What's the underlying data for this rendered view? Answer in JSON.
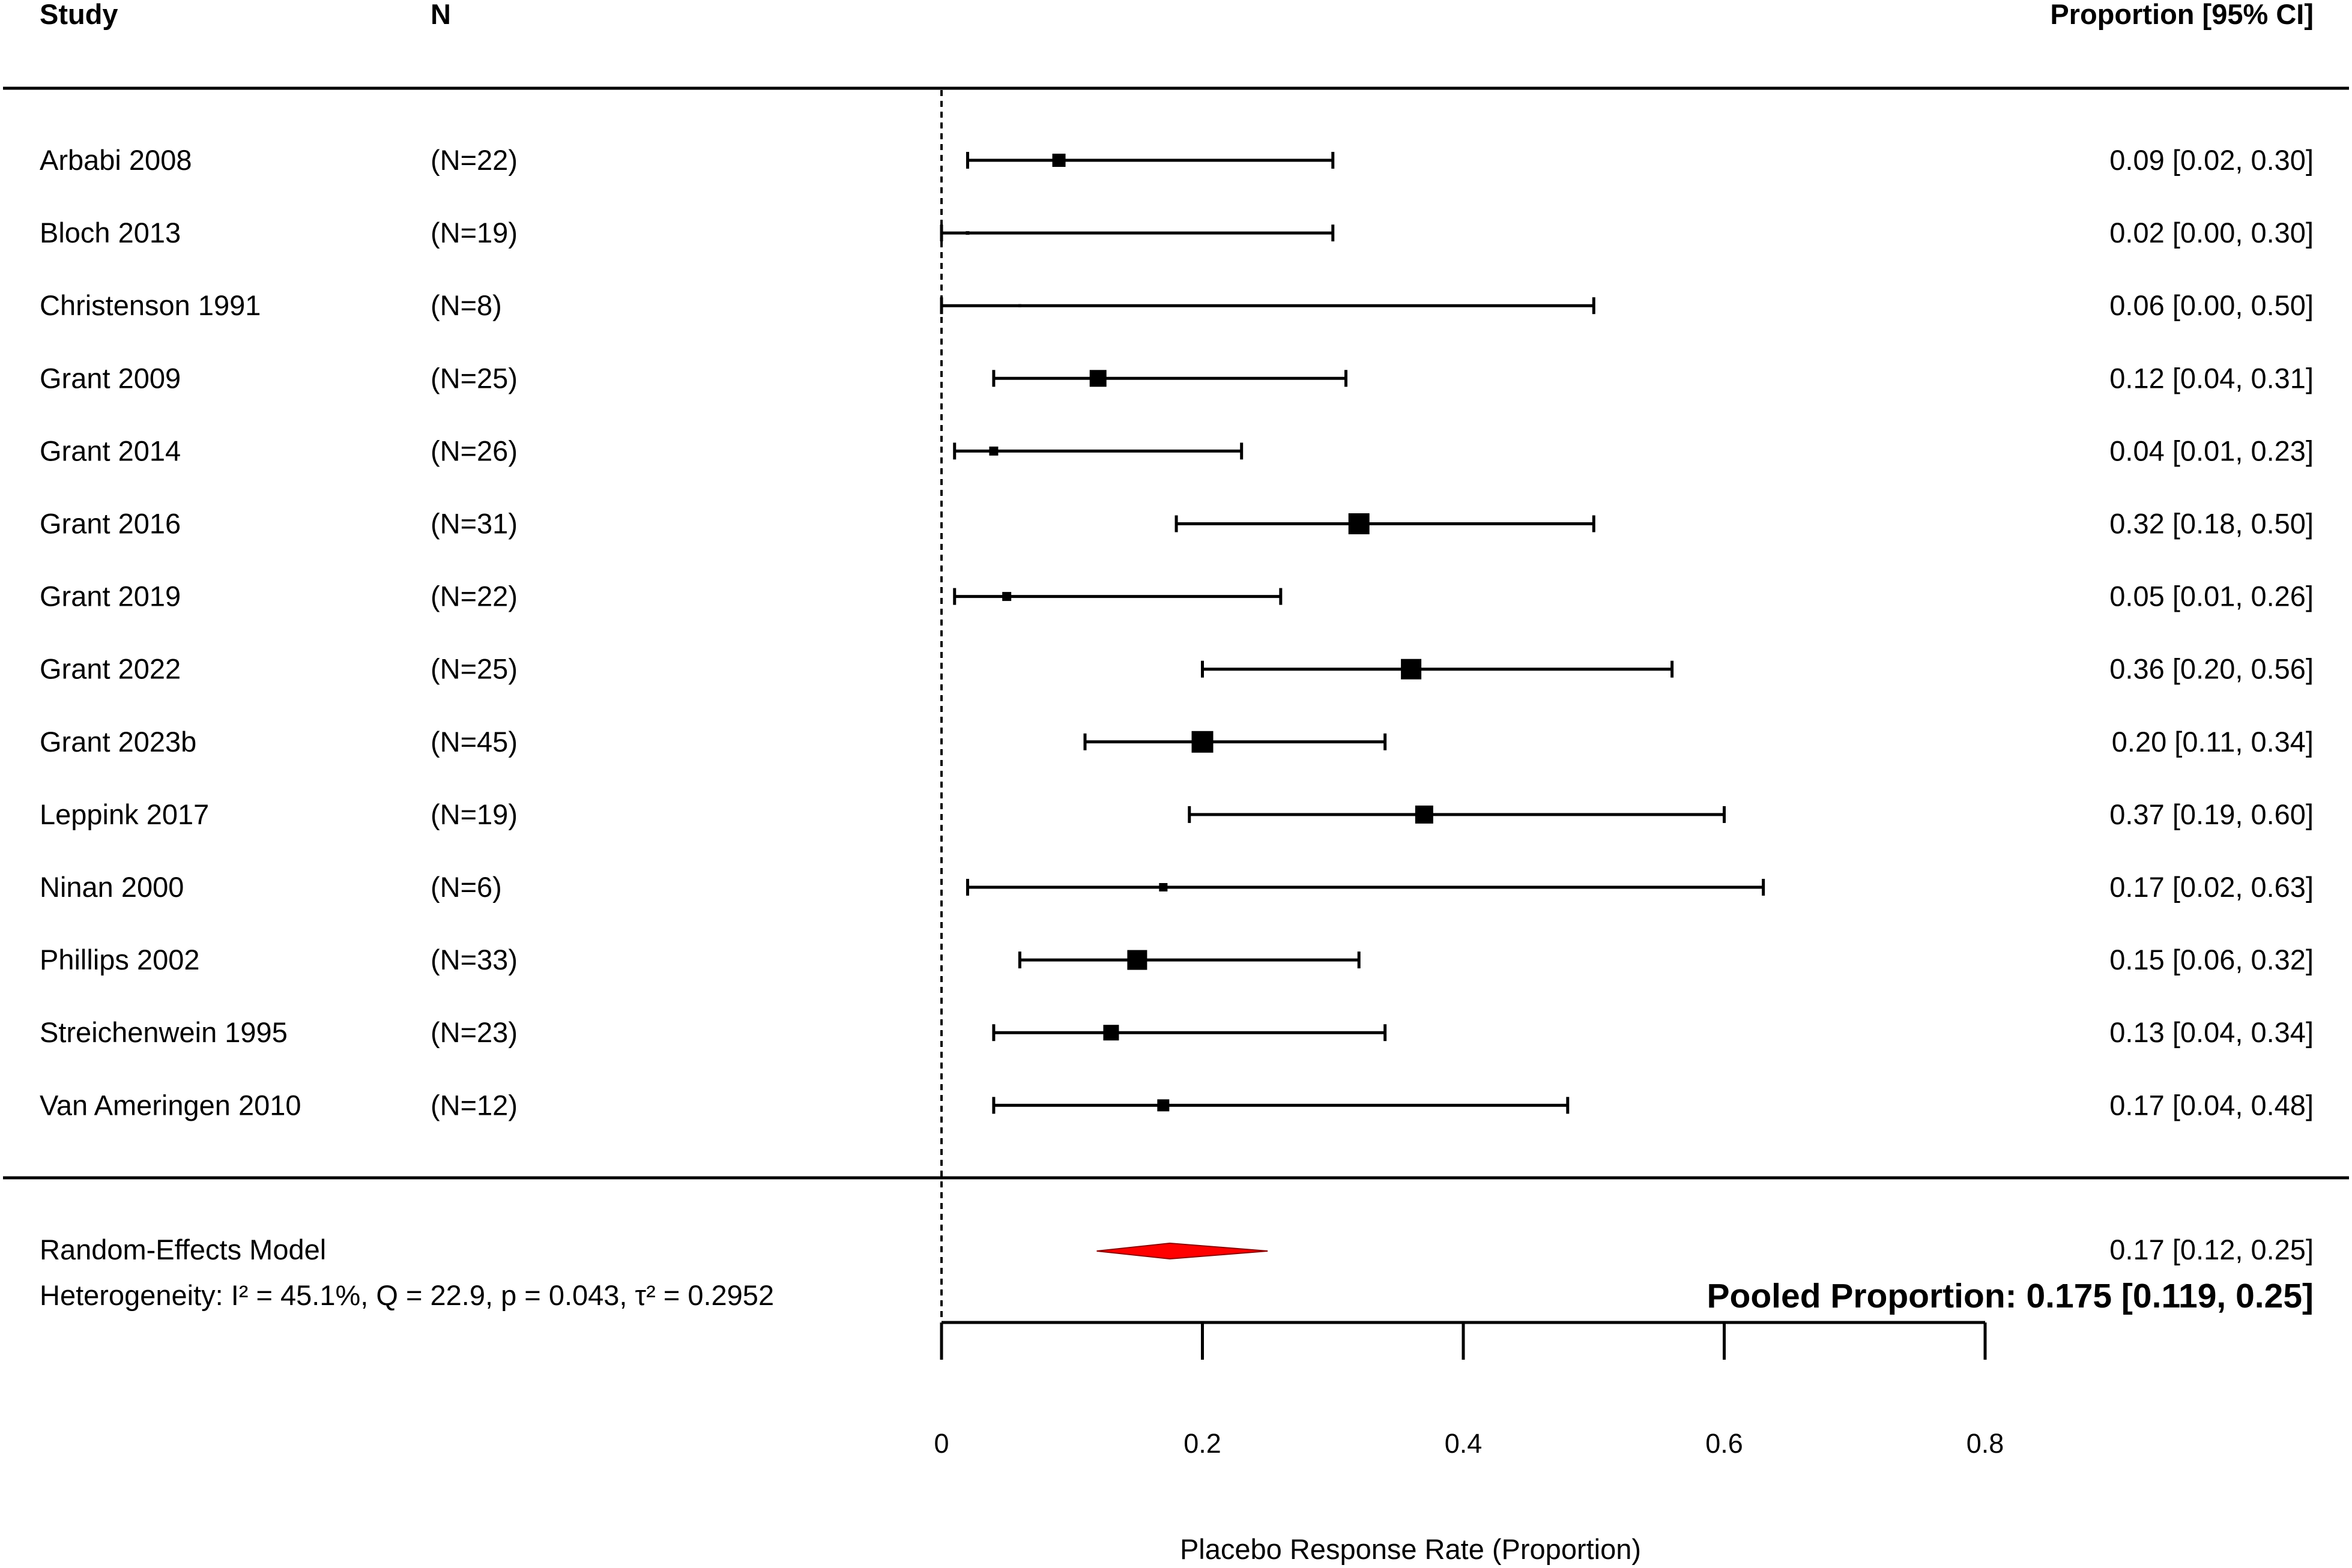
{
  "chart_data": {
    "type": "forest",
    "headers": {
      "study": "Study",
      "n": "N",
      "estimate": "Proportion [95% CI]"
    },
    "studies": [
      {
        "name": "Arbabi 2008",
        "n_label": "(N=22)",
        "estimate": 0.09,
        "lower": 0.02,
        "upper": 0.3,
        "ci_label": "0.09 [0.02, 0.30]",
        "weight": 22
      },
      {
        "name": "Bloch 2013",
        "n_label": "(N=19)",
        "estimate": 0.02,
        "lower": 0.0,
        "upper": 0.3,
        "ci_label": "0.02 [0.00, 0.30]",
        "weight": 6
      },
      {
        "name": "Christenson 1991",
        "n_label": "(N=8)",
        "estimate": 0.06,
        "lower": 0.0,
        "upper": 0.5,
        "ci_label": "0.06 [0.00, 0.50]",
        "weight": 5
      },
      {
        "name": "Grant 2009",
        "n_label": "(N=25)",
        "estimate": 0.12,
        "lower": 0.04,
        "upper": 0.31,
        "ci_label": "0.12 [0.04, 0.31]",
        "weight": 28
      },
      {
        "name": "Grant 2014",
        "n_label": "(N=26)",
        "estimate": 0.04,
        "lower": 0.01,
        "upper": 0.23,
        "ci_label": "0.04 [0.01, 0.23]",
        "weight": 15
      },
      {
        "name": "Grant 2016",
        "n_label": "(N=31)",
        "estimate": 0.32,
        "lower": 0.18,
        "upper": 0.5,
        "ci_label": "0.32 [0.18, 0.50]",
        "weight": 35
      },
      {
        "name": "Grant 2019",
        "n_label": "(N=22)",
        "estimate": 0.05,
        "lower": 0.01,
        "upper": 0.26,
        "ci_label": "0.05 [0.01, 0.26]",
        "weight": 15
      },
      {
        "name": "Grant 2022",
        "n_label": "(N=25)",
        "estimate": 0.36,
        "lower": 0.2,
        "upper": 0.56,
        "ci_label": "0.36 [0.20, 0.56]",
        "weight": 34
      },
      {
        "name": "Grant 2023b",
        "n_label": "(N=45)",
        "estimate": 0.2,
        "lower": 0.11,
        "upper": 0.34,
        "ci_label": "0.20 [0.11, 0.34]",
        "weight": 36
      },
      {
        "name": "Leppink 2017",
        "n_label": "(N=19)",
        "estimate": 0.37,
        "lower": 0.19,
        "upper": 0.6,
        "ci_label": "0.37 [0.19, 0.60]",
        "weight": 30
      },
      {
        "name": "Ninan 2000",
        "n_label": "(N=6)",
        "estimate": 0.17,
        "lower": 0.02,
        "upper": 0.63,
        "ci_label": "0.17 [0.02, 0.63]",
        "weight": 14
      },
      {
        "name": "Phillips 2002",
        "n_label": "(N=33)",
        "estimate": 0.15,
        "lower": 0.06,
        "upper": 0.32,
        "ci_label": "0.15 [0.06, 0.32]",
        "weight": 33
      },
      {
        "name": "Streichenwein 1995",
        "n_label": "(N=23)",
        "estimate": 0.13,
        "lower": 0.04,
        "upper": 0.34,
        "ci_label": "0.13 [0.04, 0.34]",
        "weight": 26
      },
      {
        "name": "Van Ameringen 2010",
        "n_label": "(N=12)",
        "estimate": 0.17,
        "lower": 0.04,
        "upper": 0.48,
        "ci_label": "0.17 [0.04, 0.48]",
        "weight": 20
      }
    ],
    "pooled": {
      "label": "Random-Effects Model",
      "estimate": 0.175,
      "lower": 0.119,
      "upper": 0.25,
      "ci_label": "0.17 [0.12, 0.25]",
      "color": "#ff0000"
    },
    "heterogeneity": "Heterogeneity: I² = 45.1%, Q = 22.9, p = 0.043, τ² = 0.2952",
    "pooled_summary": "Pooled Proportion: 0.175 [0.119, 0.25]",
    "xlabel": "Placebo Response Rate (Proportion)",
    "xlim": [
      0,
      0.8
    ],
    "ticks": [
      0,
      0.2,
      0.4,
      0.6,
      0.8
    ],
    "tick_labels": [
      "0",
      "0.2",
      "0.4",
      "0.6",
      "0.8"
    ],
    "reference_line": 0
  }
}
